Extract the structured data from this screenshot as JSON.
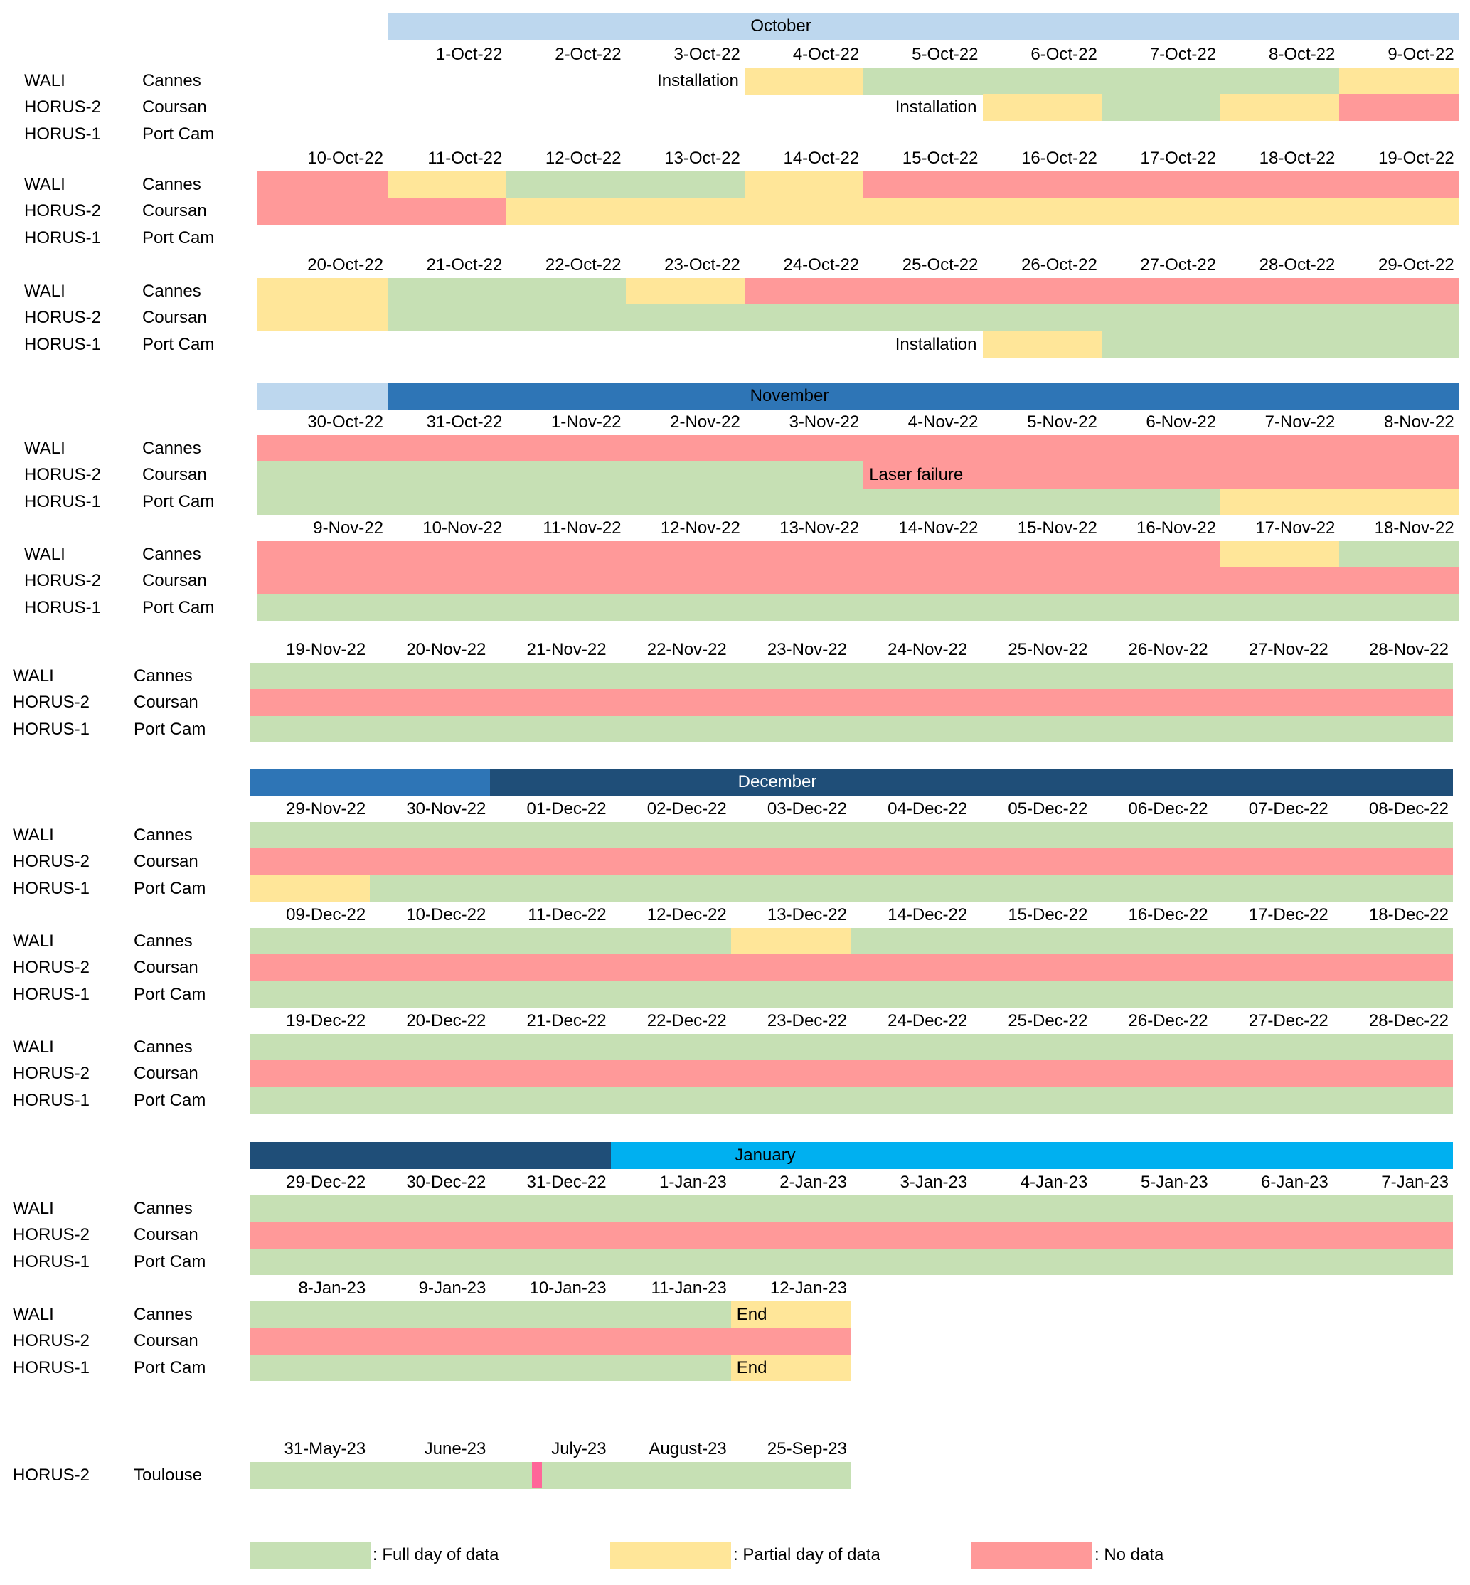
{
  "colors": {
    "F": "#C6E0B4",
    "P": "#FFE699",
    "N": "#FF9999",
    "marker": "#FF6699"
  },
  "month_headers": [
    {
      "label": "October",
      "label_color": "#000000",
      "segments": [
        {
          "from": 1,
          "to": 10,
          "color": "#BDD7EE"
        }
      ]
    },
    {
      "label": "November",
      "label_color": "#000000",
      "segments": [
        {
          "from": 0,
          "to": 1,
          "color": "#BDD7EE"
        },
        {
          "from": 1,
          "to": 10,
          "color": "#2E75B6"
        }
      ]
    },
    {
      "label": "December",
      "label_color": "#FFFFFF",
      "segments": [
        {
          "from": 0,
          "to": 2,
          "color": "#2E75B6"
        },
        {
          "from": 2,
          "to": 10,
          "color": "#1F4E78"
        }
      ]
    },
    {
      "label": "January",
      "label_color": "#000000",
      "segments": [
        {
          "from": 0,
          "to": 3,
          "color": "#1F4E78"
        },
        {
          "from": 3,
          "to": 10,
          "color": "#00B0F0"
        }
      ]
    }
  ],
  "blocks": [
    {
      "dates": [
        "",
        "1-Oct-22",
        "2-Oct-22",
        "3-Oct-22",
        "4-Oct-22",
        "5-Oct-22",
        "6-Oct-22",
        "7-Oct-22",
        "8-Oct-22",
        "9-Oct-22"
      ],
      "rows": [
        {
          "instrument": "WALI",
          "site": "Cannes",
          "cells": [
            "",
            "",
            "",
            "",
            "P",
            "F",
            "F",
            "F",
            "F",
            "P"
          ]
        },
        {
          "instrument": "HORUS-2",
          "site": "Coursan",
          "cells": [
            "",
            "",
            "",
            "",
            "",
            "",
            "P",
            "F",
            "P",
            "N"
          ]
        },
        {
          "instrument": "HORUS-1",
          "site": "Port Cam",
          "cells": [
            "",
            "",
            "",
            "",
            "",
            "",
            "",
            "",
            "",
            ""
          ]
        }
      ],
      "notes": [
        {
          "row": 0,
          "col": 3,
          "text": "Installation",
          "align": "right"
        },
        {
          "row": 1,
          "col": 5,
          "text": "Installation",
          "align": "right"
        }
      ]
    },
    {
      "dates": [
        "10-Oct-22",
        "11-Oct-22",
        "12-Oct-22",
        "13-Oct-22",
        "14-Oct-22",
        "15-Oct-22",
        "16-Oct-22",
        "17-Oct-22",
        "18-Oct-22",
        "19-Oct-22"
      ],
      "rows": [
        {
          "instrument": "WALI",
          "site": "Cannes",
          "cells": [
            "N",
            "P",
            "F",
            "F",
            "P",
            "N",
            "N",
            "N",
            "N",
            "N"
          ]
        },
        {
          "instrument": "HORUS-2",
          "site": "Coursan",
          "cells": [
            "N",
            "N",
            "P",
            "P",
            "P",
            "P",
            "P",
            "P",
            "P",
            "P"
          ]
        },
        {
          "instrument": "HORUS-1",
          "site": "Port Cam",
          "cells": [
            "",
            "",
            "",
            "",
            "",
            "",
            "",
            "",
            "",
            ""
          ]
        }
      ],
      "notes": []
    },
    {
      "dates": [
        "20-Oct-22",
        "21-Oct-22",
        "22-Oct-22",
        "23-Oct-22",
        "24-Oct-22",
        "25-Oct-22",
        "26-Oct-22",
        "27-Oct-22",
        "28-Oct-22",
        "29-Oct-22"
      ],
      "rows": [
        {
          "instrument": "WALI",
          "site": "Cannes",
          "cells": [
            "P",
            "F",
            "F",
            "P",
            "N",
            "N",
            "N",
            "N",
            "N",
            "N"
          ]
        },
        {
          "instrument": "HORUS-2",
          "site": "Coursan",
          "cells": [
            "P",
            "F",
            "F",
            "F",
            "F",
            "F",
            "F",
            "F",
            "F",
            "F"
          ]
        },
        {
          "instrument": "HORUS-1",
          "site": "Port Cam",
          "cells": [
            "",
            "",
            "",
            "",
            "",
            "",
            "P",
            "F",
            "F",
            "F"
          ]
        }
      ],
      "notes": [
        {
          "row": 2,
          "col": 5,
          "text": "Installation",
          "align": "right"
        }
      ]
    },
    {
      "dates": [
        "30-Oct-22",
        "31-Oct-22",
        "1-Nov-22",
        "2-Nov-22",
        "3-Nov-22",
        "4-Nov-22",
        "5-Nov-22",
        "6-Nov-22",
        "7-Nov-22",
        "8-Nov-22"
      ],
      "rows": [
        {
          "instrument": "WALI",
          "site": "Cannes",
          "cells": [
            "N",
            "N",
            "N",
            "N",
            "N",
            "N",
            "N",
            "N",
            "N",
            "N"
          ]
        },
        {
          "instrument": "HORUS-2",
          "site": "Coursan",
          "cells": [
            "F",
            "F",
            "F",
            "F",
            "F",
            "N",
            "N",
            "N",
            "N",
            "N"
          ]
        },
        {
          "instrument": "HORUS-1",
          "site": "Port Cam",
          "cells": [
            "F",
            "F",
            "F",
            "F",
            "F",
            "F",
            "F",
            "F",
            "P",
            "P"
          ]
        }
      ],
      "notes": [
        {
          "row": 1,
          "col": 5,
          "text": "Laser failure",
          "align": "left"
        }
      ]
    },
    {
      "dates": [
        "9-Nov-22",
        "10-Nov-22",
        "11-Nov-22",
        "12-Nov-22",
        "13-Nov-22",
        "14-Nov-22",
        "15-Nov-22",
        "16-Nov-22",
        "17-Nov-22",
        "18-Nov-22"
      ],
      "rows": [
        {
          "instrument": "WALI",
          "site": "Cannes",
          "cells": [
            "N",
            "N",
            "N",
            "N",
            "N",
            "N",
            "N",
            "N",
            "P",
            "F"
          ]
        },
        {
          "instrument": "HORUS-2",
          "site": "Coursan",
          "cells": [
            "N",
            "N",
            "N",
            "N",
            "N",
            "N",
            "N",
            "N",
            "N",
            "N"
          ]
        },
        {
          "instrument": "HORUS-1",
          "site": "Port Cam",
          "cells": [
            "F",
            "F",
            "F",
            "F",
            "F",
            "F",
            "F",
            "F",
            "F",
            "F"
          ]
        }
      ],
      "notes": []
    },
    {
      "dates": [
        "19-Nov-22",
        "20-Nov-22",
        "21-Nov-22",
        "22-Nov-22",
        "23-Nov-22",
        "24-Nov-22",
        "25-Nov-22",
        "26-Nov-22",
        "27-Nov-22",
        "28-Nov-22"
      ],
      "rows": [
        {
          "instrument": "WALI",
          "site": "Cannes",
          "cells": [
            "F",
            "F",
            "F",
            "F",
            "F",
            "F",
            "F",
            "F",
            "F",
            "F"
          ]
        },
        {
          "instrument": "HORUS-2",
          "site": "Coursan",
          "cells": [
            "N",
            "N",
            "N",
            "N",
            "N",
            "N",
            "N",
            "N",
            "N",
            "N"
          ]
        },
        {
          "instrument": "HORUS-1",
          "site": "Port Cam",
          "cells": [
            "F",
            "F",
            "F",
            "F",
            "F",
            "F",
            "F",
            "F",
            "F",
            "F"
          ]
        }
      ],
      "notes": []
    },
    {
      "dates": [
        "29-Nov-22",
        "30-Nov-22",
        "01-Dec-22",
        "02-Dec-22",
        "03-Dec-22",
        "04-Dec-22",
        "05-Dec-22",
        "06-Dec-22",
        "07-Dec-22",
        "08-Dec-22"
      ],
      "rows": [
        {
          "instrument": "WALI",
          "site": "Cannes",
          "cells": [
            "F",
            "F",
            "F",
            "F",
            "F",
            "F",
            "F",
            "F",
            "F",
            "F"
          ]
        },
        {
          "instrument": "HORUS-2",
          "site": "Coursan",
          "cells": [
            "N",
            "N",
            "N",
            "N",
            "N",
            "N",
            "N",
            "N",
            "N",
            "N"
          ]
        },
        {
          "instrument": "HORUS-1",
          "site": "Port Cam",
          "cells": [
            "P",
            "F",
            "F",
            "F",
            "F",
            "F",
            "F",
            "F",
            "F",
            "F"
          ]
        }
      ],
      "notes": []
    },
    {
      "dates": [
        "09-Dec-22",
        "10-Dec-22",
        "11-Dec-22",
        "12-Dec-22",
        "13-Dec-22",
        "14-Dec-22",
        "15-Dec-22",
        "16-Dec-22",
        "17-Dec-22",
        "18-Dec-22"
      ],
      "rows": [
        {
          "instrument": "WALI",
          "site": "Cannes",
          "cells": [
            "F",
            "F",
            "F",
            "F",
            "P",
            "F",
            "F",
            "F",
            "F",
            "F"
          ]
        },
        {
          "instrument": "HORUS-2",
          "site": "Coursan",
          "cells": [
            "N",
            "N",
            "N",
            "N",
            "N",
            "N",
            "N",
            "N",
            "N",
            "N"
          ]
        },
        {
          "instrument": "HORUS-1",
          "site": "Port Cam",
          "cells": [
            "F",
            "F",
            "F",
            "F",
            "F",
            "F",
            "F",
            "F",
            "F",
            "F"
          ]
        }
      ],
      "notes": []
    },
    {
      "dates": [
        "19-Dec-22",
        "20-Dec-22",
        "21-Dec-22",
        "22-Dec-22",
        "23-Dec-22",
        "24-Dec-22",
        "25-Dec-22",
        "26-Dec-22",
        "27-Dec-22",
        "28-Dec-22"
      ],
      "rows": [
        {
          "instrument": "WALI",
          "site": "Cannes",
          "cells": [
            "F",
            "F",
            "F",
            "F",
            "F",
            "F",
            "F",
            "F",
            "F",
            "F"
          ]
        },
        {
          "instrument": "HORUS-2",
          "site": "Coursan",
          "cells": [
            "N",
            "N",
            "N",
            "N",
            "N",
            "N",
            "N",
            "N",
            "N",
            "N"
          ]
        },
        {
          "instrument": "HORUS-1",
          "site": "Port Cam",
          "cells": [
            "F",
            "F",
            "F",
            "F",
            "F",
            "F",
            "F",
            "F",
            "F",
            "F"
          ]
        }
      ],
      "notes": []
    },
    {
      "dates": [
        "29-Dec-22",
        "30-Dec-22",
        "31-Dec-22",
        "1-Jan-23",
        "2-Jan-23",
        "3-Jan-23",
        "4-Jan-23",
        "5-Jan-23",
        "6-Jan-23",
        "7-Jan-23"
      ],
      "rows": [
        {
          "instrument": "WALI",
          "site": "Cannes",
          "cells": [
            "F",
            "F",
            "F",
            "F",
            "F",
            "F",
            "F",
            "F",
            "F",
            "F"
          ]
        },
        {
          "instrument": "HORUS-2",
          "site": "Coursan",
          "cells": [
            "N",
            "N",
            "N",
            "N",
            "N",
            "N",
            "N",
            "N",
            "N",
            "N"
          ]
        },
        {
          "instrument": "HORUS-1",
          "site": "Port Cam",
          "cells": [
            "F",
            "F",
            "F",
            "F",
            "F",
            "F",
            "F",
            "F",
            "F",
            "F"
          ]
        }
      ],
      "notes": []
    },
    {
      "dates": [
        "8-Jan-23",
        "9-Jan-23",
        "10-Jan-23",
        "11-Jan-23",
        "12-Jan-23"
      ],
      "rows": [
        {
          "instrument": "WALI",
          "site": "Cannes",
          "cells": [
            "F",
            "F",
            "F",
            "F",
            "P"
          ]
        },
        {
          "instrument": "HORUS-2",
          "site": "Coursan",
          "cells": [
            "N",
            "N",
            "N",
            "N",
            "N"
          ]
        },
        {
          "instrument": "HORUS-1",
          "site": "Port Cam",
          "cells": [
            "F",
            "F",
            "F",
            "F",
            "P"
          ]
        }
      ],
      "notes": [
        {
          "row": 0,
          "col": 4,
          "text": "End",
          "align": "left"
        },
        {
          "row": 2,
          "col": 4,
          "text": "End",
          "align": "left"
        }
      ]
    },
    {
      "dates": [
        "31-May-23",
        "June-23",
        "July-23",
        "August-23",
        "25-Sep-23"
      ],
      "rows": [
        {
          "instrument": "HORUS-2",
          "site": "Toulouse",
          "cells": [
            "F",
            "F",
            "F",
            "F",
            "F"
          ]
        }
      ],
      "notes": [],
      "no_data_marker": {
        "col": 2,
        "status": "N"
      }
    }
  ],
  "legend": [
    {
      "status": "F",
      "label": ": Full day of data"
    },
    {
      "status": "P",
      "label": ": Partial day of data"
    },
    {
      "status": "N",
      "label": ": No data"
    }
  ]
}
